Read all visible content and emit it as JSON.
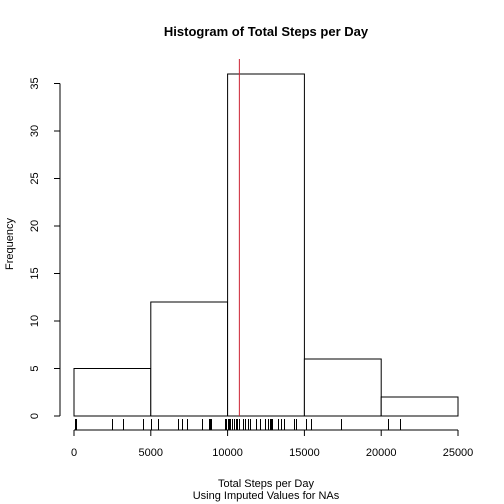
{
  "chart_data": {
    "type": "histogram",
    "title": "Histogram of Total Steps per Day",
    "xlabel": "Total Steps per Day",
    "xlabel_sub": "Using Imputed Values for NAs",
    "ylabel": "Frequency",
    "bins": [
      {
        "from": 0,
        "to": 5000,
        "count": 5
      },
      {
        "from": 5000,
        "to": 10000,
        "count": 12
      },
      {
        "from": 10000,
        "to": 15000,
        "count": 36
      },
      {
        "from": 15000,
        "to": 20000,
        "count": 6
      },
      {
        "from": 20000,
        "to": 25000,
        "count": 2
      }
    ],
    "xlim": [
      0,
      25000
    ],
    "ylim": [
      0,
      36
    ],
    "xticks": [
      "0",
      "5000",
      "10000",
      "15000",
      "20000",
      "25000"
    ],
    "xtick_values": [
      0,
      5000,
      10000,
      15000,
      20000,
      25000
    ],
    "yticks": [
      "0",
      "5",
      "10",
      "15",
      "20",
      "25",
      "30",
      "35"
    ],
    "ytick_values": [
      0,
      5,
      10,
      15,
      20,
      25,
      30,
      35
    ],
    "mean_line": {
      "x": 10766,
      "color": "#cc2233"
    },
    "rug": [
      41,
      126,
      2492,
      3219,
      4472,
      5018,
      5441,
      6778,
      7047,
      7336,
      8334,
      8355,
      8821,
      8841,
      8918,
      9819,
      9900,
      10056,
      10119,
      10139,
      10183,
      10304,
      10395,
      10439,
      10571,
      10600,
      10765,
      10766,
      11015,
      11162,
      11352,
      11458,
      11829,
      11834,
      12116,
      12426,
      12608,
      12787,
      12811,
      12883,
      13294,
      13452,
      13460,
      13646,
      14339,
      14478,
      15084,
      15098,
      15110,
      15414,
      17382,
      20427,
      21194
    ],
    "grid": false,
    "bar_fill": "#ffffff",
    "bar_stroke": "#000000"
  }
}
